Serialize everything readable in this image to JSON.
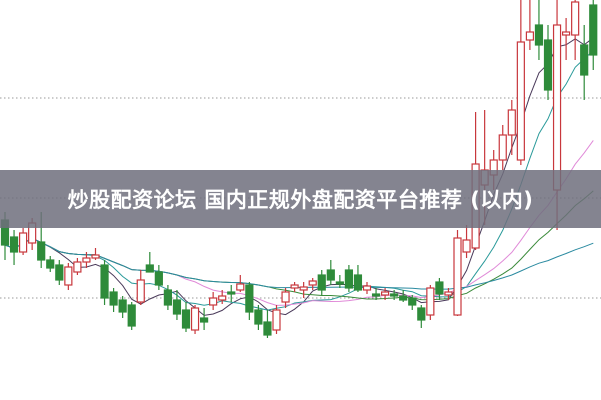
{
  "title": "炒股配资论坛 国内正规外盘配资平台推荐 (以内)",
  "colors": {
    "up": "#c8373c",
    "down": "#2e8b3a",
    "grid": "#999999",
    "banner": "#6e6e7d"
  },
  "chart_data": {
    "type": "candlestick",
    "grid": true,
    "ohlc": [
      [
        180,
        188,
        140,
        155
      ],
      [
        163,
        170,
        135,
        148
      ],
      [
        148,
        172,
        145,
        167
      ],
      [
        157,
        182,
        150,
        177
      ],
      [
        158,
        188,
        132,
        140
      ],
      [
        140,
        144,
        128,
        132
      ],
      [
        135,
        140,
        115,
        120
      ],
      [
        115,
        137,
        110,
        133
      ],
      [
        128,
        142,
        125,
        138
      ],
      [
        138,
        148,
        132,
        142
      ],
      [
        142,
        152,
        140,
        145
      ],
      [
        135,
        140,
        95,
        102
      ],
      [
        108,
        112,
        88,
        95
      ],
      [
        100,
        104,
        82,
        88
      ],
      [
        95,
        98,
        70,
        74
      ],
      [
        98,
        130,
        95,
        120
      ],
      [
        135,
        148,
        128,
        128
      ],
      [
        128,
        135,
        110,
        115
      ],
      [
        110,
        115,
        90,
        95
      ],
      [
        100,
        110,
        80,
        86
      ],
      [
        90,
        98,
        68,
        72
      ],
      [
        70,
        95,
        66,
        92
      ],
      [
        82,
        92,
        70,
        78
      ],
      [
        95,
        108,
        90,
        102
      ],
      [
        100,
        110,
        96,
        104
      ],
      [
        108,
        115,
        98,
        106
      ],
      [
        110,
        125,
        108,
        116
      ],
      [
        115,
        118,
        80,
        88
      ],
      [
        90,
        95,
        70,
        76
      ],
      [
        78,
        90,
        62,
        65
      ],
      [
        70,
        95,
        66,
        90
      ],
      [
        98,
        112,
        92,
        108
      ],
      [
        112,
        118,
        108,
        115
      ],
      [
        110,
        118,
        102,
        113
      ],
      [
        115,
        122,
        110,
        119
      ],
      [
        125,
        130,
        105,
        110
      ],
      [
        130,
        140,
        115,
        120
      ],
      [
        118,
        125,
        112,
        116
      ],
      [
        130,
        135,
        108,
        112
      ],
      [
        125,
        135,
        108,
        110
      ],
      [
        110,
        118,
        106,
        114
      ],
      [
        106,
        112,
        100,
        104
      ],
      [
        105,
        112,
        100,
        108
      ],
      [
        106,
        110,
        100,
        104
      ],
      [
        104,
        110,
        98,
        100
      ],
      [
        102,
        105,
        90,
        95
      ],
      [
        92,
        95,
        72,
        80
      ],
      [
        85,
        115,
        80,
        112
      ],
      [
        118,
        122,
        100,
        106
      ],
      [
        105,
        112,
        100,
        108
      ],
      [
        85,
        170,
        84,
        162
      ],
      [
        148,
        175,
        142,
        160
      ],
      [
        152,
        288,
        150,
        236
      ],
      [
        215,
        290,
        175,
        230
      ],
      [
        225,
        250,
        210,
        240
      ],
      [
        240,
        275,
        230,
        265
      ],
      [
        265,
        300,
        245,
        290
      ],
      [
        240,
        400,
        235,
        358
      ],
      [
        360,
        400,
        350,
        368
      ],
      [
        375,
        400,
        340,
        355
      ],
      [
        360,
        375,
        300,
        310
      ],
      [
        210,
        400,
        170,
        375
      ],
      [
        365,
        382,
        340,
        368
      ],
      [
        365,
        400,
        340,
        398
      ],
      [
        355,
        375,
        300,
        325
      ],
      [
        395,
        400,
        330,
        345
      ]
    ],
    "moving_averages": [
      {
        "period": 5,
        "color": "#4a3a5a"
      },
      {
        "period": 10,
        "color": "#2a9a9a"
      },
      {
        "period": 20,
        "color": "#e08ad8"
      },
      {
        "period": 30,
        "color": "#3a8a3a"
      },
      {
        "period": 60,
        "color": "#2a8aa0"
      }
    ]
  }
}
